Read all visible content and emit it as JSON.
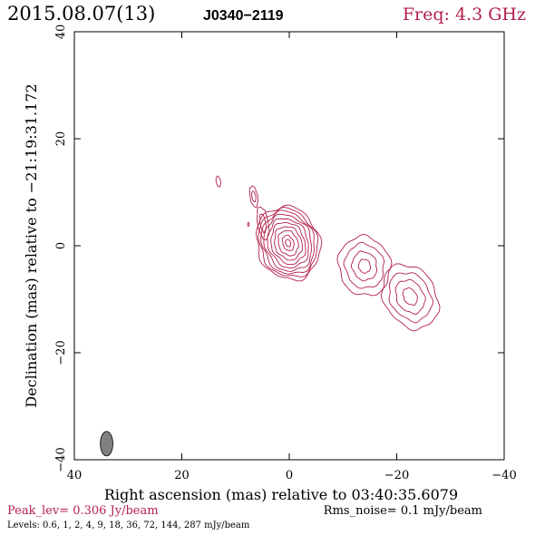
{
  "header": {
    "date": "2015.08.07(13)",
    "source": "J0340−2119",
    "freq": "Freq: 4.3 GHz"
  },
  "footer": {
    "peak": "Peak_lev=  0.306 Jy/beam",
    "rms": "Rms_noise=  0.1 mJy/beam",
    "levels": "Levels: 0.6,   1,   2,   4,   9,  18,  36,  72, 144, 287 mJy/beam"
  },
  "colors": {
    "contour": "#b3204a",
    "accent": "#b3204a",
    "text": "#000000",
    "beam": "#808080"
  },
  "chart_data": {
    "type": "contour",
    "xlabel": "Right ascension (mas) relative to 03:40:35.6079",
    "ylabel": "Declination (mas) relative to −21:19:31.172",
    "xlim": [
      40,
      -40
    ],
    "ylim": [
      -40,
      40
    ],
    "xticks": [
      40,
      20,
      0,
      -20,
      -40
    ],
    "yticks": [
      -40,
      -20,
      0,
      20,
      40
    ],
    "xtick_labels": [
      "40",
      "20",
      "0",
      "−20",
      "−40"
    ],
    "ytick_labels": [
      "−40",
      "−20",
      "0",
      "20",
      "40"
    ],
    "beam": {
      "x": 34,
      "y": -37,
      "major_mas": 4.6,
      "minor_mas": 2.0,
      "pa_deg": 0
    },
    "levels_mJy": [
      0.6,
      1,
      2,
      4,
      9,
      18,
      36,
      72,
      144,
      287
    ],
    "components": [
      {
        "name": "core",
        "center": [
          0.2,
          0.5
        ],
        "rings": [
          {
            "rx": 5.8,
            "ry": 7.0,
            "rot": -20
          },
          {
            "rx": 5.3,
            "ry": 6.5,
            "rot": -20
          },
          {
            "rx": 4.8,
            "ry": 6.0,
            "rot": -20
          },
          {
            "rx": 4.3,
            "ry": 5.4,
            "rot": -20
          },
          {
            "rx": 3.7,
            "ry": 4.7,
            "rot": -20
          },
          {
            "rx": 3.1,
            "ry": 4.0,
            "rot": -20
          },
          {
            "rx": 2.5,
            "ry": 3.2,
            "rot": -20
          },
          {
            "rx": 1.8,
            "ry": 2.4,
            "rot": -20
          },
          {
            "rx": 1.0,
            "ry": 1.5,
            "rot": -20
          },
          {
            "rx": 0.45,
            "ry": 0.7,
            "rot": -20
          }
        ]
      },
      {
        "name": "jet-knot-1",
        "center": [
          -14.0,
          -3.8
        ],
        "rings": [
          {
            "rx": 4.8,
            "ry": 5.6,
            "rot": -15
          },
          {
            "rx": 3.6,
            "ry": 4.2,
            "rot": -15
          },
          {
            "rx": 2.3,
            "ry": 2.7,
            "rot": -15
          },
          {
            "rx": 1.1,
            "ry": 1.3,
            "rot": -15
          }
        ]
      },
      {
        "name": "jet-knot-2",
        "center": [
          -22.5,
          -9.5
        ],
        "rings": [
          {
            "rx": 4.8,
            "ry": 6.4,
            "rot": -30
          },
          {
            "rx": 3.7,
            "ry": 4.8,
            "rot": -30
          },
          {
            "rx": 2.5,
            "ry": 3.3,
            "rot": -30
          },
          {
            "rx": 1.2,
            "ry": 1.7,
            "rot": -30
          }
        ]
      },
      {
        "name": "counterjet-blob-1",
        "center": [
          4.9,
          4.2
        ],
        "rings": [
          {
            "rx": 1.0,
            "ry": 3.1,
            "rot": -10
          },
          {
            "rx": 0.5,
            "ry": 1.8,
            "rot": -10
          }
        ]
      },
      {
        "name": "counterjet-blob-2",
        "center": [
          6.6,
          9.2
        ],
        "rings": [
          {
            "rx": 0.7,
            "ry": 2.0,
            "rot": -10
          },
          {
            "rx": 0.35,
            "ry": 1.0,
            "rot": -10
          }
        ]
      },
      {
        "name": "counterjet-blob-3",
        "center": [
          13.2,
          12.0
        ],
        "rings": [
          {
            "rx": 0.4,
            "ry": 1.0,
            "rot": -10
          }
        ]
      },
      {
        "name": "counterjet-blob-4",
        "center": [
          7.6,
          4.0
        ],
        "rings": [
          {
            "rx": 0.15,
            "ry": 0.35,
            "rot": 0
          }
        ]
      }
    ]
  }
}
